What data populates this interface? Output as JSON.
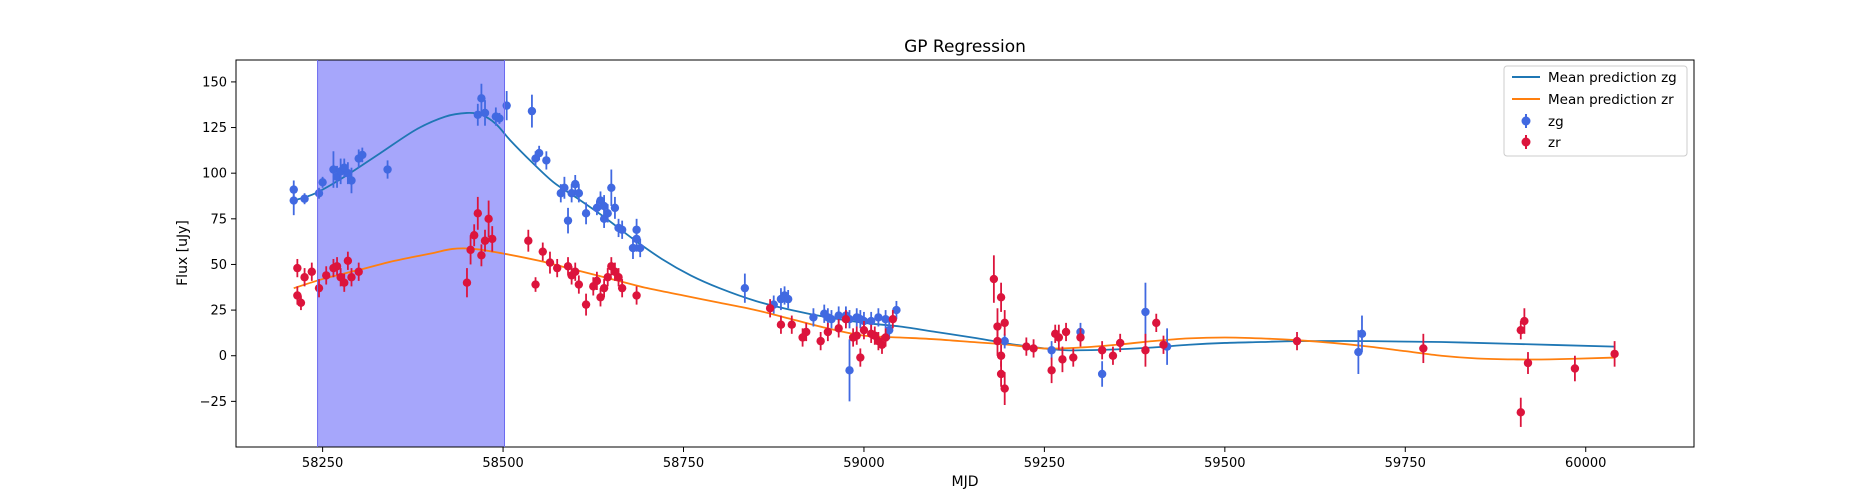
{
  "chart_data": {
    "type": "scatter",
    "title": "GP Regression",
    "xlabel": "MJD",
    "ylabel": "Flux [uJy]",
    "xlim": [
      58130,
      60150
    ],
    "ylim": [
      -50,
      162
    ],
    "xticks": [
      58250,
      58500,
      58750,
      59000,
      59250,
      59500,
      59750,
      60000
    ],
    "yticks": [
      -25,
      0,
      25,
      50,
      75,
      100,
      125,
      150
    ],
    "legend_position": "top-right",
    "shaded_region": {
      "x_start": 58243,
      "x_end": 58502,
      "color": "#a6a6fb"
    },
    "colors": {
      "zg_points": "#4169e1",
      "zr_points": "#dc143c",
      "zg_line": "#1f77b4",
      "zr_line": "#ff7f0e"
    },
    "lines": [
      {
        "name": "Mean prediction zg",
        "color": "#1f77b4",
        "x": [
          58210,
          58240,
          58280,
          58330,
          58380,
          58420,
          58450,
          58470,
          58490,
          58510,
          58540,
          58570,
          58600,
          58640,
          58680,
          58720,
          58760,
          58800,
          58850,
          58900,
          58950,
          59000,
          59050,
          59100,
          59150,
          59180,
          59210,
          59250,
          59280,
          59300,
          59350,
          59400,
          59450,
          59500,
          59550,
          59600,
          59700,
          59800,
          59900,
          60040
        ],
        "y": [
          85,
          89,
          98,
          111,
          124,
          131,
          133,
          132,
          127,
          118,
          106,
          95,
          87,
          76,
          64,
          53,
          44,
          37,
          30,
          25,
          21,
          18,
          16,
          13,
          10,
          8,
          6,
          4,
          3,
          3,
          3.5,
          4.5,
          6,
          7,
          7.5,
          8,
          8,
          7.5,
          6.5,
          5
        ]
      },
      {
        "name": "Mean prediction zr",
        "color": "#ff7f0e",
        "x": [
          58210,
          58250,
          58300,
          58350,
          58400,
          58430,
          58460,
          58500,
          58550,
          58600,
          58650,
          58700,
          58750,
          58800,
          58850,
          58900,
          58950,
          59000,
          59050,
          59100,
          59150,
          59200,
          59250,
          59300,
          59350,
          59400,
          59450,
          59500,
          59550,
          59600,
          59650,
          59700,
          59750,
          59800,
          59850,
          59900,
          59950,
          60040
        ],
        "y": [
          37,
          42,
          47,
          52,
          56,
          58.5,
          58.5,
          56,
          52,
          47,
          42,
          37,
          33,
          29,
          25,
          20,
          15,
          11,
          10,
          9,
          7.5,
          6,
          4,
          4.5,
          6,
          8,
          9.5,
          10,
          9.5,
          8.5,
          7,
          5,
          2.5,
          0,
          -1.5,
          -2,
          -2,
          -1
        ]
      }
    ],
    "series": [
      {
        "name": "zg",
        "color": "#4169e1",
        "points": [
          [
            58210,
            91,
            5
          ],
          [
            58210,
            85,
            8
          ],
          [
            58225,
            86,
            3
          ],
          [
            58245,
            89,
            3
          ],
          [
            58250,
            95,
            3
          ],
          [
            58265,
            102,
            10
          ],
          [
            58270,
            98,
            6
          ],
          [
            58275,
            101,
            7
          ],
          [
            58280,
            103,
            5
          ],
          [
            58285,
            100,
            6
          ],
          [
            58290,
            96,
            7
          ],
          [
            58300,
            108,
            5
          ],
          [
            58305,
            110,
            4
          ],
          [
            58340,
            102,
            5
          ],
          [
            58465,
            132,
            6
          ],
          [
            58470,
            141,
            8
          ],
          [
            58475,
            133,
            7
          ],
          [
            58490,
            131,
            5
          ],
          [
            58495,
            130,
            3
          ],
          [
            58505,
            137,
            8
          ],
          [
            58540,
            134,
            9
          ],
          [
            58545,
            108,
            4
          ],
          [
            58550,
            111,
            4
          ],
          [
            58560,
            107,
            5
          ],
          [
            58580,
            89,
            5
          ],
          [
            58585,
            92,
            6
          ],
          [
            58590,
            74,
            7
          ],
          [
            58595,
            89,
            5
          ],
          [
            58600,
            94,
            5
          ],
          [
            58605,
            89,
            5
          ],
          [
            58615,
            78,
            6
          ],
          [
            58630,
            81,
            4
          ],
          [
            58635,
            85,
            5
          ],
          [
            58640,
            82,
            6
          ],
          [
            58640,
            75,
            5
          ],
          [
            58645,
            78,
            5
          ],
          [
            58650,
            92,
            10
          ],
          [
            58655,
            81,
            6
          ],
          [
            58660,
            70,
            5
          ],
          [
            58665,
            69,
            5
          ],
          [
            58680,
            59,
            6
          ],
          [
            58685,
            64,
            7
          ],
          [
            58685,
            69,
            6
          ],
          [
            58690,
            59,
            5
          ],
          [
            58835,
            37,
            8
          ],
          [
            58875,
            28,
            5
          ],
          [
            58885,
            31,
            6
          ],
          [
            58890,
            33,
            5
          ],
          [
            58895,
            31,
            5
          ],
          [
            58930,
            21,
            5
          ],
          [
            58945,
            23,
            5
          ],
          [
            58950,
            21,
            5
          ],
          [
            58955,
            20,
            5
          ],
          [
            58965,
            22,
            5
          ],
          [
            58975,
            22,
            5
          ],
          [
            58980,
            20,
            5
          ],
          [
            58980,
            -8,
            17
          ],
          [
            58990,
            21,
            5
          ],
          [
            58995,
            20,
            5
          ],
          [
            59000,
            19,
            5
          ],
          [
            59010,
            19,
            5
          ],
          [
            59020,
            21,
            5
          ],
          [
            59030,
            20,
            5
          ],
          [
            59035,
            14,
            5
          ],
          [
            59045,
            25,
            5
          ],
          [
            59195,
            8,
            4
          ],
          [
            59260,
            3,
            5
          ],
          [
            59300,
            13,
            5
          ],
          [
            59330,
            -10,
            7
          ],
          [
            59390,
            24,
            16
          ],
          [
            59420,
            5,
            10
          ],
          [
            59685,
            2,
            12
          ],
          [
            59690,
            12,
            10
          ]
        ]
      },
      {
        "name": "zr",
        "color": "#dc143c",
        "points": [
          [
            58215,
            33,
            5
          ],
          [
            58220,
            29,
            4
          ],
          [
            58215,
            48,
            5
          ],
          [
            58225,
            43,
            5
          ],
          [
            58235,
            46,
            5
          ],
          [
            58245,
            37,
            5
          ],
          [
            58255,
            44,
            5
          ],
          [
            58265,
            48,
            5
          ],
          [
            58270,
            49,
            5
          ],
          [
            58275,
            43,
            5
          ],
          [
            58280,
            40,
            5
          ],
          [
            58285,
            52,
            5
          ],
          [
            58290,
            43,
            5
          ],
          [
            58300,
            46,
            5
          ],
          [
            58450,
            40,
            8
          ],
          [
            58455,
            58,
            8
          ],
          [
            58460,
            66,
            6
          ],
          [
            58465,
            78,
            9
          ],
          [
            58470,
            55,
            6
          ],
          [
            58475,
            63,
            6
          ],
          [
            58480,
            75,
            10
          ],
          [
            58485,
            64,
            7
          ],
          [
            58535,
            63,
            6
          ],
          [
            58545,
            39,
            4
          ],
          [
            58555,
            57,
            5
          ],
          [
            58565,
            51,
            6
          ],
          [
            58575,
            48,
            5
          ],
          [
            58590,
            49,
            5
          ],
          [
            58595,
            44,
            5
          ],
          [
            58600,
            46,
            5
          ],
          [
            58605,
            39,
            5
          ],
          [
            58615,
            28,
            6
          ],
          [
            58625,
            38,
            5
          ],
          [
            58630,
            41,
            5
          ],
          [
            58635,
            32,
            5
          ],
          [
            58640,
            37,
            5
          ],
          [
            58645,
            43,
            5
          ],
          [
            58650,
            49,
            5
          ],
          [
            58655,
            46,
            5
          ],
          [
            58660,
            43,
            5
          ],
          [
            58665,
            37,
            5
          ],
          [
            58685,
            33,
            5
          ],
          [
            58870,
            26,
            5
          ],
          [
            58885,
            17,
            5
          ],
          [
            58900,
            17,
            5
          ],
          [
            58915,
            10,
            5
          ],
          [
            58920,
            13,
            5
          ],
          [
            58940,
            8,
            5
          ],
          [
            58950,
            13,
            5
          ],
          [
            58965,
            15,
            5
          ],
          [
            58975,
            20,
            5
          ],
          [
            58985,
            10,
            5
          ],
          [
            58990,
            11,
            5
          ],
          [
            58995,
            -1,
            5
          ],
          [
            59000,
            14,
            5
          ],
          [
            59010,
            12,
            5
          ],
          [
            59015,
            11,
            5
          ],
          [
            59020,
            8,
            5
          ],
          [
            59025,
            6,
            5
          ],
          [
            59030,
            10,
            5
          ],
          [
            59040,
            20,
            5
          ],
          [
            59180,
            42,
            13
          ],
          [
            59185,
            16,
            10
          ],
          [
            59185,
            8,
            8
          ],
          [
            59190,
            0,
            6
          ],
          [
            59190,
            -10,
            7
          ],
          [
            59195,
            -18,
            9
          ],
          [
            59195,
            18,
            7
          ],
          [
            59190,
            32,
            8
          ],
          [
            59225,
            5,
            5
          ],
          [
            59235,
            4,
            5
          ],
          [
            59260,
            -8,
            7
          ],
          [
            59265,
            12,
            5
          ],
          [
            59270,
            10,
            7
          ],
          [
            59275,
            -2,
            7
          ],
          [
            59280,
            13,
            5
          ],
          [
            59290,
            -1,
            5
          ],
          [
            59300,
            10,
            5
          ],
          [
            59330,
            3,
            5
          ],
          [
            59345,
            0,
            5
          ],
          [
            59355,
            7,
            5
          ],
          [
            59390,
            3,
            9
          ],
          [
            59405,
            18,
            5
          ],
          [
            59415,
            6,
            5
          ],
          [
            59600,
            8,
            5
          ],
          [
            59775,
            4,
            8
          ],
          [
            59910,
            14,
            5
          ],
          [
            59910,
            -31,
            8
          ],
          [
            59915,
            19,
            7
          ],
          [
            59920,
            -4,
            6
          ],
          [
            59985,
            -7,
            7
          ],
          [
            60040,
            1,
            7
          ]
        ]
      }
    ]
  }
}
